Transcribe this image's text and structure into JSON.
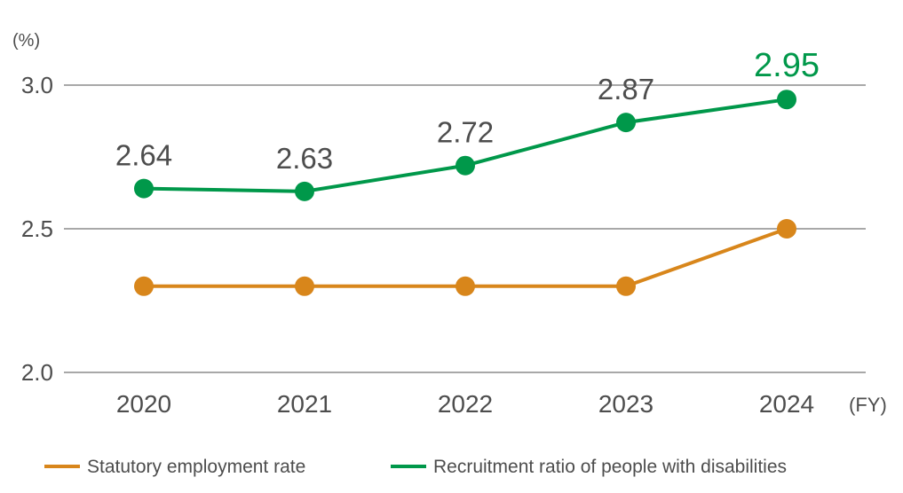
{
  "chart_data": {
    "type": "line",
    "ylabel": "(%)",
    "xlabel": "(FY)",
    "categories": [
      "2020",
      "2021",
      "2022",
      "2023",
      "2024"
    ],
    "ylim": [
      2.0,
      3.0
    ],
    "yticks": [
      "2.0",
      "2.5",
      "3.0"
    ],
    "grid": true,
    "legend_position": "bottom",
    "series": [
      {
        "name": "Statutory employment rate",
        "color": "#d8861b",
        "values": [
          2.3,
          2.3,
          2.3,
          2.3,
          2.5
        ],
        "labels": [
          "",
          "",
          "",
          "",
          ""
        ]
      },
      {
        "name": "Recruitment ratio of people with disabilities",
        "color": "#00984a",
        "values": [
          2.64,
          2.63,
          2.72,
          2.87,
          2.95
        ],
        "labels": [
          "2.64",
          "2.63",
          "2.72",
          "2.87",
          "2.95"
        ]
      }
    ]
  }
}
